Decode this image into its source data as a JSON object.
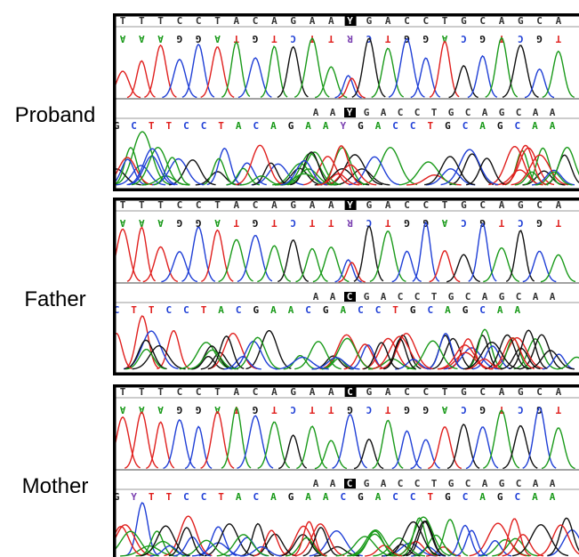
{
  "panels": [
    {
      "label": "Proband",
      "tracks": [
        {
          "top": [
            "T",
            "T",
            "T",
            "C",
            "C",
            "T",
            "A",
            "C",
            "A",
            "G",
            "A",
            "A",
            "Y",
            "G",
            "A",
            "C",
            "C",
            "T",
            "G",
            "C",
            "A",
            "G",
            "C",
            "A"
          ],
          "bottom": [
            "A",
            "A",
            "A",
            "G",
            "G",
            "A",
            "T",
            "G",
            "T",
            "C",
            "T",
            "T",
            "R",
            "C",
            "T",
            "G",
            "G",
            "A",
            "C",
            "G",
            "T",
            "C",
            "G",
            "T"
          ],
          "highlight": 12
        },
        {
          "top": [
            "A",
            "A",
            "Y",
            "G",
            "A",
            "C",
            "C",
            "T",
            "G",
            "C",
            "A",
            "G",
            "C",
            "A",
            "A"
          ],
          "bottom": [
            "G",
            "C",
            "T",
            "T",
            "C",
            "C",
            "T",
            "A",
            "C",
            "A",
            "G",
            "A",
            "A",
            "Y",
            "G",
            "A",
            "C",
            "C",
            "T",
            "G",
            "C",
            "A",
            "G",
            "C",
            "A",
            "A"
          ],
          "highlight": 2
        }
      ]
    },
    {
      "label": "Father",
      "tracks": [
        {
          "top": [
            "T",
            "T",
            "T",
            "C",
            "C",
            "T",
            "A",
            "C",
            "A",
            "G",
            "A",
            "A",
            "Y",
            "G",
            "A",
            "C",
            "C",
            "T",
            "G",
            "C",
            "A",
            "G",
            "C",
            "A"
          ],
          "bottom": [
            "A",
            "A",
            "A",
            "G",
            "G",
            "A",
            "T",
            "G",
            "T",
            "C",
            "T",
            "T",
            "R",
            "C",
            "T",
            "G",
            "G",
            "A",
            "C",
            "G",
            "T",
            "C",
            "G",
            "T"
          ],
          "highlight": 12
        },
        {
          "top": [
            "A",
            "A",
            "C",
            "G",
            "A",
            "C",
            "C",
            "T",
            "G",
            "C",
            "A",
            "G",
            "C",
            "A",
            "A"
          ],
          "bottom": [
            "C",
            "T",
            "T",
            "C",
            "C",
            "T",
            "A",
            "C",
            "G",
            "A",
            "A",
            "C",
            "G",
            "A",
            "C",
            "C",
            "T",
            "G",
            "C",
            "A",
            "G",
            "C",
            "A",
            "A"
          ],
          "highlight": 2
        }
      ]
    },
    {
      "label": "Mother",
      "tracks": [
        {
          "top": [
            "T",
            "T",
            "T",
            "C",
            "C",
            "T",
            "A",
            "C",
            "A",
            "G",
            "A",
            "A",
            "C",
            "G",
            "A",
            "C",
            "C",
            "T",
            "G",
            "C",
            "A",
            "G",
            "C",
            "A"
          ],
          "bottom": [
            "A",
            "A",
            "A",
            "G",
            "G",
            "A",
            "T",
            "G",
            "T",
            "C",
            "T",
            "T",
            "G",
            "C",
            "T",
            "G",
            "G",
            "A",
            "C",
            "G",
            "T",
            "C",
            "G",
            "T"
          ],
          "highlight": 12
        },
        {
          "top": [
            "A",
            "A",
            "C",
            "G",
            "A",
            "C",
            "C",
            "T",
            "G",
            "C",
            "A",
            "G",
            "C",
            "A",
            "A"
          ],
          "bottom": [
            "G",
            "Y",
            "T",
            "T",
            "C",
            "C",
            "T",
            "A",
            "C",
            "A",
            "G",
            "A",
            "A",
            "C",
            "G",
            "A",
            "C",
            "C",
            "T",
            "G",
            "C",
            "A",
            "G",
            "C",
            "A",
            "A"
          ],
          "highlight": 2
        }
      ]
    }
  ]
}
